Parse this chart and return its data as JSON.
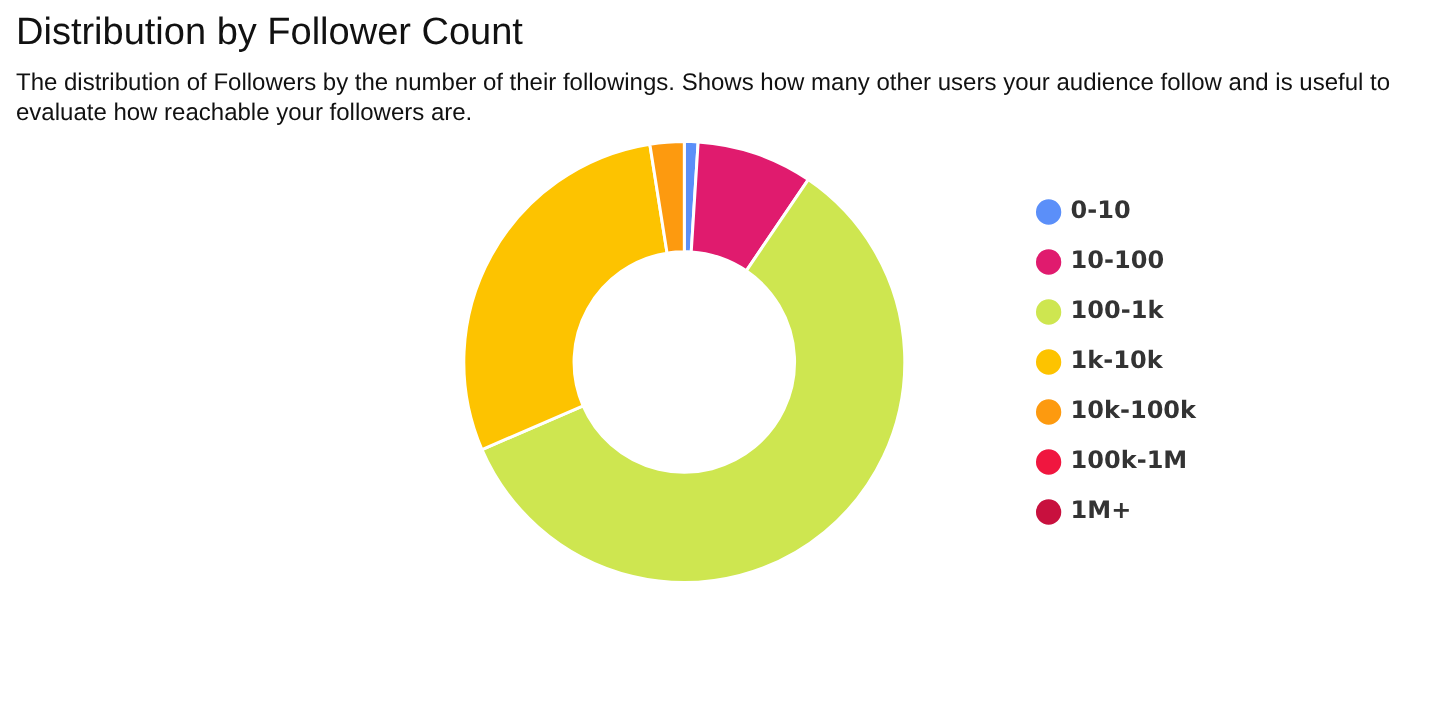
{
  "chart_data": {
    "type": "donut",
    "title": "Distribution by Follower Count",
    "subtitle": "The distribution of Followers by the number of their followings. Shows how many other users your audience follow and is useful to evaluate how reachable your followers are.",
    "categories": [
      "0-10",
      "10-100",
      "100-1k",
      "1k-10k",
      "10k-100k",
      "100k-1M",
      "1M+"
    ],
    "values": [
      1,
      8.5,
      59,
      29,
      2.5,
      0,
      0
    ],
    "colors": [
      "#5b8ff9",
      "#e01b6e",
      "#cee650",
      "#fdc300",
      "#fd9a0f",
      "#f0163f",
      "#c8103e"
    ],
    "legend": "right"
  }
}
